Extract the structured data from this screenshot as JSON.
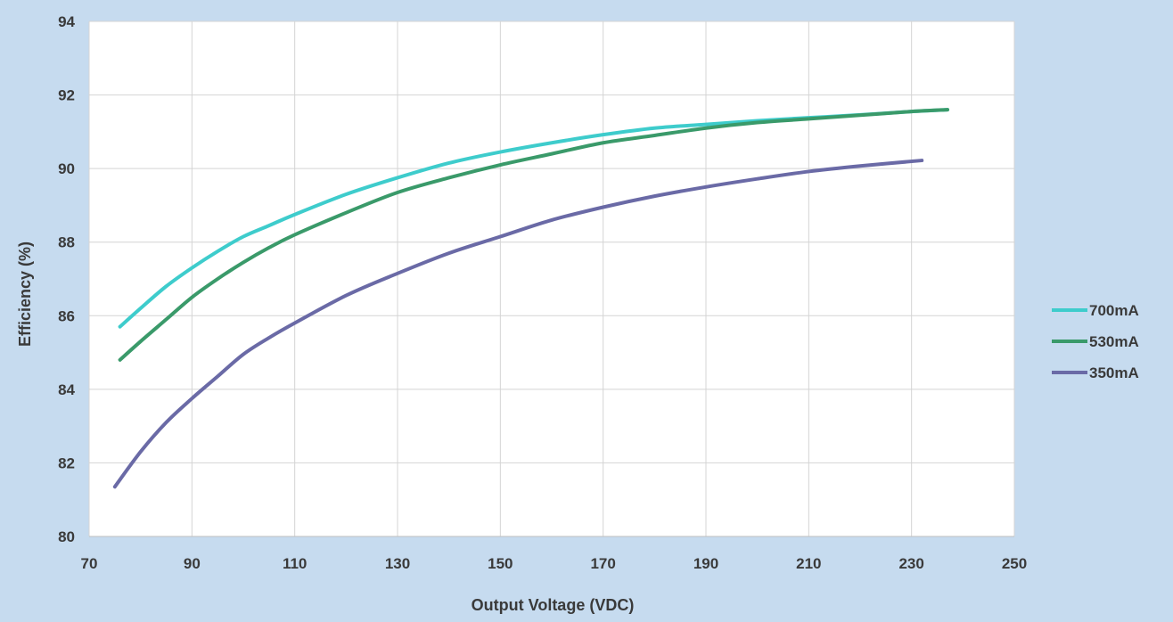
{
  "chart_data": {
    "type": "line",
    "title": "",
    "xlabel": "Output Voltage (VDC)",
    "ylabel": "Efficiency (%)",
    "xlim": [
      70,
      250
    ],
    "ylim": [
      80,
      94
    ],
    "x_ticks": [
      70,
      90,
      110,
      130,
      150,
      170,
      190,
      210,
      230,
      250
    ],
    "y_ticks": [
      80,
      82,
      84,
      86,
      88,
      90,
      92,
      94
    ],
    "grid": true,
    "legend_position": "right",
    "background_color": "#c6dbef",
    "plot_background_color": "#ffffff",
    "series": [
      {
        "name": "700mA",
        "color": "#3ecccc",
        "x": [
          76,
          80,
          85,
          90,
          95,
          100,
          105,
          110,
          120,
          130,
          140,
          150,
          160,
          170,
          180,
          190,
          200,
          210,
          220,
          230,
          237
        ],
        "y": [
          85.7,
          86.2,
          86.8,
          87.3,
          87.75,
          88.15,
          88.45,
          88.75,
          89.3,
          89.75,
          90.15,
          90.45,
          90.7,
          90.92,
          91.1,
          91.2,
          91.3,
          91.38,
          91.46,
          91.55,
          91.6
        ]
      },
      {
        "name": "530mA",
        "color": "#3a9a6a",
        "x": [
          76,
          80,
          85,
          90,
          95,
          100,
          105,
          110,
          120,
          130,
          140,
          150,
          160,
          170,
          180,
          190,
          200,
          210,
          220,
          230,
          237
        ],
        "y": [
          84.8,
          85.3,
          85.9,
          86.5,
          87.0,
          87.45,
          87.85,
          88.2,
          88.8,
          89.35,
          89.75,
          90.1,
          90.4,
          90.7,
          90.9,
          91.1,
          91.25,
          91.35,
          91.45,
          91.55,
          91.6
        ]
      },
      {
        "name": "350mA",
        "color": "#6a6aa6",
        "x": [
          75,
          80,
          85,
          90,
          95,
          100,
          105,
          110,
          120,
          130,
          140,
          150,
          160,
          170,
          180,
          190,
          200,
          210,
          220,
          232
        ],
        "y": [
          81.35,
          82.3,
          83.1,
          83.75,
          84.35,
          84.95,
          85.4,
          85.8,
          86.55,
          87.15,
          87.7,
          88.15,
          88.6,
          88.95,
          89.25,
          89.5,
          89.72,
          89.92,
          90.07,
          90.22
        ]
      }
    ]
  }
}
